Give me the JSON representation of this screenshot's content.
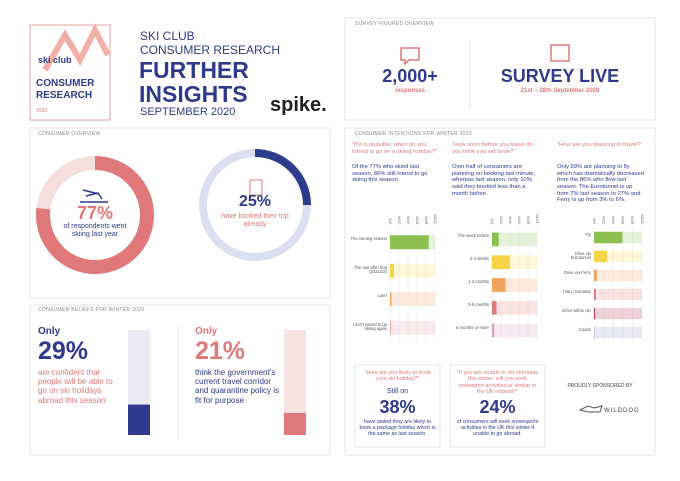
{
  "logo": {
    "brand": "ski club",
    "title": "CONSUMER RESEARCH",
    "year": "2020"
  },
  "header": {
    "line1": "SKI CLUB",
    "line2": "CONSUMER RESEARCH",
    "title1": "FURTHER",
    "title2": "INSIGHTS",
    "date": "SEPTEMBER 2020",
    "partner": "spike."
  },
  "survey": {
    "label": "SURVEY FIGURES OVERVIEW",
    "responses": "2,000+",
    "responses_caption": "responses",
    "status": "SURVEY LIVE",
    "dates": "21st – 28th September 2020"
  },
  "overview": {
    "label": "CONSUMER OVERVIEW",
    "items": [
      {
        "value": 77,
        "value_label": "77%",
        "caption": "of respondents went skiing last year",
        "color": "#e07a7a",
        "track": "#f5dede"
      },
      {
        "value": 25,
        "value_label": "25%",
        "caption": "have booked their trip already",
        "color": "#2e3a8c",
        "track": "#dcdff0"
      }
    ]
  },
  "beliefs": {
    "label": "CONSUMER BELIEFS FOR WINTER 2020",
    "items": [
      {
        "prefix": "Only",
        "value": 29,
        "value_label": "29%",
        "caption": "are confident that people will be able to go on ski holidays abroad this season",
        "color": "#2e3a8c",
        "track": "#e9eaf2"
      },
      {
        "prefix": "Only",
        "value": 21,
        "value_label": "21%",
        "caption": "think the government's current travel corridor and quarantine policy is fit for purpose",
        "color": "#e07a7a",
        "track": "#f8e3e3"
      }
    ]
  },
  "intentions": {
    "label": "CONSUMER INTENTIONS FOR WINTER 2020",
    "columns": [
      {
        "question": "\"If it is possible, when do you intend to go on a skiing holiday?\"",
        "answer": "Of the 77% who skied last season, 86% still intend to go skiing this season.",
        "chart": {
          "categories": [
            "The coming season",
            "The one after that (2021/22)",
            "Later",
            "I don't intend to go skiing again"
          ],
          "values": [
            86,
            9,
            3,
            2
          ],
          "colors": [
            "#8cc152",
            "#f5d547",
            "#f0a35e",
            "#e8a0a0"
          ],
          "xlim": [
            0,
            100
          ],
          "xticks": [
            {
              "value": 0,
              "label": "0%"
            },
            {
              "value": 20,
              "label": "20%"
            },
            {
              "value": 40,
              "label": "40%"
            },
            {
              "value": 60,
              "label": "60%"
            },
            {
              "value": 80,
              "label": "80%"
            },
            {
              "value": 100,
              "label": "100%"
            }
          ]
        }
      },
      {
        "question": "\"How soon before you travel do you think you will book?\"",
        "answer": "Over half of consumers are planning on booking last minute, whereas last season, only 10% said they booked less than a month before.",
        "chart": {
          "categories": [
            "The week before",
            "2-4 weeks",
            "1-2 months",
            "3-6 months",
            "6 months or more"
          ],
          "values": [
            15,
            40,
            30,
            10,
            5
          ],
          "colors": [
            "#8cc152",
            "#f5d547",
            "#f0a35e",
            "#e07a7a",
            "#d9a0c0"
          ],
          "xlim": [
            0,
            100
          ],
          "xticks": [
            {
              "value": 0,
              "label": "0%"
            },
            {
              "value": 20,
              "label": "20%"
            },
            {
              "value": 40,
              "label": "40%"
            },
            {
              "value": 60,
              "label": "60%"
            },
            {
              "value": 80,
              "label": "80%"
            },
            {
              "value": 100,
              "label": "100%"
            }
          ]
        }
      },
      {
        "question": "\"How are you planning to travel?\"",
        "answer": "Only 59% are planning to fly which has dramatically decreased from the 86% who flew last season. The Eurotunnel is up from 7% last season to 27% and Ferry is up from 3% to 6%.",
        "chart": {
          "categories": [
            "Fly",
            "Drive via Eurotunnel",
            "Drive via Ferry",
            "Train / Eurostar",
            "Drive within UK",
            "Coach"
          ],
          "values": [
            59,
            27,
            6,
            4,
            2,
            1
          ],
          "colors": [
            "#8cc152",
            "#f5d547",
            "#f0a35e",
            "#e07a7a",
            "#b03050",
            "#9aa0c8"
          ],
          "xlim": [
            0,
            100
          ],
          "xticks": [
            {
              "value": 0,
              "label": "0%"
            },
            {
              "value": 20,
              "label": "20%"
            },
            {
              "value": 40,
              "label": "40%"
            },
            {
              "value": 60,
              "label": "60%"
            },
            {
              "value": 80,
              "label": "80%"
            },
            {
              "value": 100,
              "label": "100%"
            }
          ]
        }
      }
    ],
    "book": {
      "question": "\"How are you likely to book your ski holiday?\"",
      "prefix": "Still on",
      "value_label": "38%",
      "caption": "have stated they are likely to book a package holiday which is the same as last season."
    },
    "uk": {
      "question": "\"If you are unable to ski overseas this winter, will you seek snowsport activities or similar in the UK instead?\"",
      "value_label": "24%",
      "caption": "of consumers will seek snowsports activities in the UK this winter if unable to go abroad."
    },
    "sponsor": {
      "label": "PROUDLY SPONSORED BY",
      "name": "WILDDOG"
    }
  }
}
